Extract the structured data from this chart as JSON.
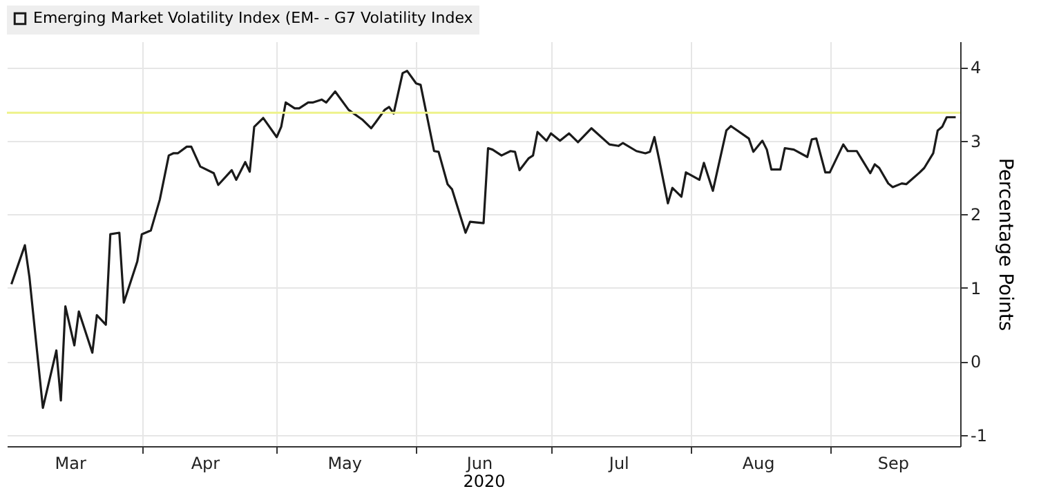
{
  "chart_data": {
    "type": "line",
    "xlabel": "2020",
    "ylabel": "Percentage Points",
    "x": [
      "2020-03-03",
      "2020-03-06",
      "2020-03-07",
      "2020-03-10",
      "2020-03-13",
      "2020-03-14",
      "2020-03-15",
      "2020-03-17",
      "2020-03-18",
      "2020-03-21",
      "2020-03-22",
      "2020-03-24",
      "2020-03-25",
      "2020-03-27",
      "2020-03-28",
      "2020-03-31",
      "2020-04-01",
      "2020-04-03",
      "2020-04-05",
      "2020-04-07",
      "2020-04-08",
      "2020-04-09",
      "2020-04-11",
      "2020-04-12",
      "2020-04-14",
      "2020-04-17",
      "2020-04-18",
      "2020-04-21",
      "2020-04-22",
      "2020-04-24",
      "2020-04-25",
      "2020-04-26",
      "2020-04-28",
      "2020-05-01",
      "2020-05-02",
      "2020-05-03",
      "2020-05-05",
      "2020-05-06",
      "2020-05-08",
      "2020-05-09",
      "2020-05-11",
      "2020-05-12",
      "2020-05-14",
      "2020-05-17",
      "2020-05-20",
      "2020-05-22",
      "2020-05-23",
      "2020-05-25",
      "2020-05-26",
      "2020-05-27",
      "2020-05-29",
      "2020-05-30",
      "2020-06-01",
      "2020-06-02",
      "2020-06-05",
      "2020-06-06",
      "2020-06-08",
      "2020-06-09",
      "2020-06-12",
      "2020-06-13",
      "2020-06-16",
      "2020-06-17",
      "2020-06-18",
      "2020-06-20",
      "2020-06-22",
      "2020-06-23",
      "2020-06-24",
      "2020-06-26",
      "2020-06-27",
      "2020-06-28",
      "2020-06-30",
      "2020-07-01",
      "2020-07-03",
      "2020-07-05",
      "2020-07-07",
      "2020-07-10",
      "2020-07-14",
      "2020-07-16",
      "2020-07-17",
      "2020-07-20",
      "2020-07-22",
      "2020-07-23",
      "2020-07-24",
      "2020-07-25",
      "2020-07-27",
      "2020-07-28",
      "2020-07-30",
      "2020-07-31",
      "2020-08-03",
      "2020-08-04",
      "2020-08-06",
      "2020-08-09",
      "2020-08-10",
      "2020-08-14",
      "2020-08-15",
      "2020-08-17",
      "2020-08-18",
      "2020-08-19",
      "2020-08-21",
      "2020-08-22",
      "2020-08-24",
      "2020-08-27",
      "2020-08-28",
      "2020-08-29",
      "2020-08-31",
      "2020-09-01",
      "2020-09-04",
      "2020-09-05",
      "2020-09-07",
      "2020-09-08",
      "2020-09-10",
      "2020-09-11",
      "2020-09-12",
      "2020-09-14",
      "2020-09-15",
      "2020-09-17",
      "2020-09-18",
      "2020-09-21",
      "2020-09-22",
      "2020-09-24",
      "2020-09-25",
      "2020-09-26",
      "2020-09-27",
      "2020-09-29"
    ],
    "series": [
      {
        "name": "Emerging Market Volatility Index (EM- - G7 Volatility Index",
        "color": "#1a1a1a",
        "values": [
          1.05,
          1.58,
          1.15,
          -0.63,
          0.15,
          -0.53,
          0.75,
          0.22,
          0.68,
          0.12,
          0.63,
          0.5,
          1.73,
          1.75,
          0.8,
          1.36,
          1.73,
          1.78,
          2.2,
          2.8,
          2.83,
          2.83,
          2.92,
          2.92,
          2.65,
          2.56,
          2.4,
          2.6,
          2.47,
          2.71,
          2.58,
          3.19,
          3.31,
          3.05,
          3.19,
          3.52,
          3.44,
          3.44,
          3.52,
          3.52,
          3.56,
          3.52,
          3.67,
          3.42,
          3.29,
          3.17,
          3.25,
          3.42,
          3.46,
          3.37,
          3.92,
          3.95,
          3.78,
          3.76,
          2.86,
          2.85,
          2.41,
          2.34,
          1.75,
          1.9,
          1.88,
          2.9,
          2.88,
          2.8,
          2.86,
          2.85,
          2.6,
          2.76,
          2.8,
          3.12,
          3.0,
          3.1,
          3.0,
          3.1,
          2.98,
          3.17,
          2.95,
          2.93,
          2.97,
          2.86,
          2.83,
          2.85,
          3.05,
          2.76,
          2.15,
          2.36,
          2.24,
          2.57,
          2.47,
          2.7,
          2.32,
          3.14,
          3.2,
          3.03,
          2.85,
          3.0,
          2.88,
          2.61,
          2.61,
          2.9,
          2.88,
          2.78,
          3.02,
          3.03,
          2.57,
          2.57,
          2.95,
          2.86,
          2.86,
          2.76,
          2.56,
          2.68,
          2.63,
          2.42,
          2.37,
          2.42,
          2.41,
          2.57,
          2.63,
          2.83,
          3.14,
          3.19,
          3.32,
          3.32
        ]
      }
    ],
    "ref_lines": [
      {
        "axis": "y",
        "value": 3.38,
        "color": "#eef28a"
      }
    ],
    "xlim": [
      "2020-03-02",
      "2020-09-30"
    ],
    "xticks": [
      {
        "value": "2020-03-16",
        "label": "Mar"
      },
      {
        "value": "2020-04-01",
        "label": null
      },
      {
        "value": "2020-04-15",
        "label": "Apr"
      },
      {
        "value": "2020-05-01",
        "label": null
      },
      {
        "value": "2020-05-16",
        "label": "May"
      },
      {
        "value": "2020-06-01",
        "label": null
      },
      {
        "value": "2020-06-15",
        "label": "Jun"
      },
      {
        "value": "2020-07-01",
        "label": null
      },
      {
        "value": "2020-07-16",
        "label": "Jul"
      },
      {
        "value": "2020-08-01",
        "label": null
      },
      {
        "value": "2020-08-16",
        "label": "Aug"
      },
      {
        "value": "2020-09-01",
        "label": null
      },
      {
        "value": "2020-09-15",
        "label": "Sep"
      }
    ],
    "ylim": [
      -1.15,
      4.35
    ],
    "yticks": [
      -1,
      0,
      1,
      2,
      3,
      4
    ],
    "grid": true,
    "legend": "top left"
  }
}
